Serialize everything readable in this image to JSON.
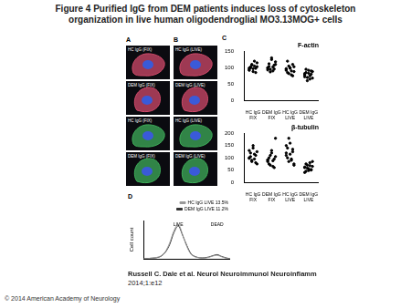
{
  "title": "Figure 4 Purified IgG from DEM patients induces loss of cytoskeleton organization in live human oligodendroglial MO3.13MOG+ cells",
  "images": [
    {
      "panel": "A",
      "items": [
        {
          "label": "HC IgG (FIX)",
          "color": "#d04a6a"
        },
        {
          "label": "DEM IgG (FIX)",
          "color": "#d04a6a"
        },
        {
          "label": "HC IgG (FIX)",
          "color": "#3fae5a"
        },
        {
          "label": "DEM IgG (FIX)",
          "color": "#3fae5a"
        }
      ]
    },
    {
      "panel": "B",
      "items": [
        {
          "label": "HC IgG (LIVE)",
          "color": "#d04a6a"
        },
        {
          "label": "DEM IgG (LIVE)",
          "color": "#d04a6a"
        },
        {
          "label": "HC IgG (LIVE)",
          "color": "#3fae5a"
        },
        {
          "label": "DEM IgG (LIVE)",
          "color": "#3fae5a"
        }
      ]
    }
  ],
  "chart_data": [
    {
      "type": "scatter",
      "panel": "C",
      "title": "F-actin",
      "categories": [
        "HC IgG FIX",
        "DEM IgG FIX",
        "HC IgG LIVE",
        "DEM IgG LIVE"
      ],
      "values": [
        [
          95,
          102,
          110,
          88,
          105,
          98,
          115,
          92,
          100,
          108,
          97,
          120,
          85,
          103,
          99
        ],
        [
          100,
          112,
          95,
          125,
          90,
          108,
          118,
          98,
          104,
          87,
          130,
          102,
          96,
          110,
          93
        ],
        [
          92,
          85,
          105,
          98,
          78,
          110,
          88,
          95,
          120,
          82,
          100,
          90,
          75,
          103,
          97
        ],
        [
          78,
          85,
          70,
          92,
          65,
          80,
          88,
          72,
          95,
          60,
          83,
          75,
          90,
          68,
          82
        ]
      ],
      "color": "#000000",
      "ylim": [
        0,
        150
      ],
      "yticks": [
        0,
        50,
        100,
        150
      ],
      "grid": false
    },
    {
      "type": "scatter",
      "title": "β-tubulin",
      "categories": [
        "HC IgG FIX",
        "DEM IgG FIX",
        "HC IgG LIVE",
        "DEM IgG LIVE"
      ],
      "values": [
        [
          100,
          120,
          85,
          140,
          95,
          110,
          75,
          130,
          105,
          90,
          150,
          115,
          80,
          125,
          98
        ],
        [
          90,
          75,
          110,
          130,
          65,
          95,
          180,
          85,
          100,
          70,
          120,
          88,
          60,
          105,
          92
        ],
        [
          110,
          140,
          85,
          160,
          95,
          125,
          70,
          150,
          100,
          180,
          115,
          90,
          135,
          75,
          120
        ],
        [
          60,
          45,
          70,
          55,
          80,
          50,
          65,
          40,
          75,
          58,
          48,
          68,
          52,
          85,
          62
        ]
      ],
      "color": "#000000",
      "ylim": [
        0,
        200
      ],
      "yticks": [
        0,
        50,
        100,
        150,
        200
      ],
      "grid": false
    },
    {
      "type": "line",
      "panel": "D",
      "x": [
        0,
        5,
        10,
        15,
        20,
        25,
        30,
        35,
        40,
        45,
        50,
        55,
        60,
        65,
        70,
        75,
        80,
        85,
        90,
        95,
        100
      ],
      "series": [
        {
          "name": "HC IgG LIVE 13.5%",
          "color": "#999999",
          "values": [
            0,
            1,
            2,
            4,
            8,
            20,
            45,
            80,
            100,
            70,
            35,
            12,
            5,
            3,
            2,
            4,
            8,
            10,
            6,
            2,
            0
          ]
        },
        {
          "name": "DEM IgG LIVE 11.2%",
          "color": "#333333",
          "values": [
            0,
            1,
            2,
            3,
            7,
            18,
            40,
            75,
            95,
            68,
            38,
            14,
            6,
            3,
            3,
            5,
            9,
            12,
            7,
            3,
            0
          ]
        }
      ],
      "y_label": "Cell count",
      "annotations": [
        {
          "text": "LIVE",
          "x": 40
        },
        {
          "text": "DEAD",
          "x": 85
        }
      ],
      "xlim": [
        0,
        100
      ],
      "ylim": [
        0,
        110
      ],
      "tick_labels": false,
      "grid": false,
      "legend": "top right"
    }
  ],
  "citation": "Russell C. Dale et al. Neurol Neuroimmunol Neuroinflamm",
  "citation_detail": "2014;1:e12",
  "copyright": "© 2014 American Academy of Neurology"
}
